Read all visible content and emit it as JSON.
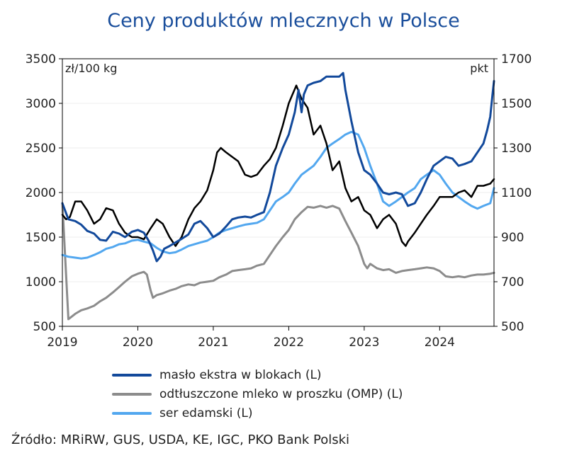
{
  "title": "Ceny produktów mlecznych w Polsce",
  "source": "Źródło: MRiRW, GUS, USDA, KE, IGC, PKO Bank Polski",
  "chart_data": {
    "type": "line",
    "title": "Ceny produktów mlecznych w Polsce",
    "left_axis": {
      "unit": "zł/100 kg",
      "min": 500,
      "max": 3500,
      "ticks": [
        "500",
        "1000",
        "1500",
        "2000",
        "2500",
        "3000",
        "3500"
      ]
    },
    "right_axis": {
      "unit": "pkt",
      "min": 500,
      "max": 1700,
      "ticks": [
        "500",
        "700",
        "900",
        "1100",
        "1300",
        "1500",
        "1700"
      ]
    },
    "x_axis": {
      "min": 2019,
      "max": 2024.72,
      "ticks": [
        "2019",
        "2020",
        "2021",
        "2022",
        "2023",
        "2024"
      ]
    },
    "legend_placement": "bottom",
    "grid": true,
    "series": [
      {
        "name": "masło ekstra w blokach (L)",
        "axis": "left",
        "color": "#12499b",
        "width": 3,
        "x": [
          2019.0,
          2019.08,
          2019.17,
          2019.25,
          2019.33,
          2019.42,
          2019.5,
          2019.58,
          2019.67,
          2019.75,
          2019.83,
          2019.92,
          2020.0,
          2020.08,
          2020.15,
          2020.2,
          2020.25,
          2020.3,
          2020.35,
          2020.42,
          2020.5,
          2020.58,
          2020.67,
          2020.75,
          2020.83,
          2020.92,
          2021.0,
          2021.08,
          2021.17,
          2021.25,
          2021.33,
          2021.42,
          2021.5,
          2021.58,
          2021.67,
          2021.75,
          2021.83,
          2021.92,
          2022.0,
          2022.08,
          2022.13,
          2022.17,
          2022.2,
          2022.25,
          2022.33,
          2022.42,
          2022.5,
          2022.58,
          2022.67,
          2022.72,
          2022.75,
          2022.83,
          2022.92,
          2023.0,
          2023.08,
          2023.17,
          2023.25,
          2023.33,
          2023.42,
          2023.5,
          2023.58,
          2023.67,
          2023.75,
          2023.83,
          2023.92,
          2024.0,
          2024.08,
          2024.17,
          2024.25,
          2024.33,
          2024.42,
          2024.5,
          2024.58,
          2024.63,
          2024.67,
          2024.7,
          2024.72
        ],
        "y": [
          1880,
          1700,
          1680,
          1640,
          1570,
          1540,
          1470,
          1460,
          1560,
          1540,
          1500,
          1560,
          1580,
          1550,
          1450,
          1350,
          1230,
          1280,
          1370,
          1400,
          1440,
          1480,
          1530,
          1650,
          1680,
          1600,
          1500,
          1540,
          1620,
          1700,
          1720,
          1730,
          1720,
          1750,
          1780,
          2000,
          2300,
          2500,
          2650,
          2900,
          3150,
          2900,
          3100,
          3200,
          3230,
          3250,
          3300,
          3300,
          3300,
          3340,
          3150,
          2800,
          2450,
          2250,
          2200,
          2100,
          2000,
          1980,
          2000,
          1980,
          1850,
          1880,
          2000,
          2150,
          2300,
          2350,
          2400,
          2380,
          2300,
          2320,
          2350,
          2450,
          2550,
          2700,
          2850,
          3100,
          3250
        ]
      },
      {
        "name": "odtłuszczone mleko w proszku (OMP) (L)",
        "axis": "left",
        "color": "#8c8c8c",
        "width": 3,
        "x": [
          2019.0,
          2019.08,
          2019.17,
          2019.25,
          2019.33,
          2019.42,
          2019.5,
          2019.58,
          2019.67,
          2019.75,
          2019.83,
          2019.92,
          2020.0,
          2020.08,
          2020.12,
          2020.17,
          2020.2,
          2020.25,
          2020.33,
          2020.42,
          2020.5,
          2020.58,
          2020.67,
          2020.75,
          2020.83,
          2020.92,
          2021.0,
          2021.08,
          2021.17,
          2021.25,
          2021.33,
          2021.42,
          2021.5,
          2021.58,
          2021.67,
          2021.75,
          2021.83,
          2021.92,
          2022.0,
          2022.08,
          2022.17,
          2022.25,
          2022.33,
          2022.42,
          2022.5,
          2022.58,
          2022.67,
          2022.75,
          2022.83,
          2022.92,
          2023.0,
          2023.04,
          2023.08,
          2023.17,
          2023.25,
          2023.33,
          2023.42,
          2023.5,
          2023.58,
          2023.67,
          2023.75,
          2023.83,
          2023.92,
          2024.0,
          2024.08,
          2024.17,
          2024.25,
          2024.33,
          2024.42,
          2024.5,
          2024.58,
          2024.67,
          2024.72
        ],
        "y": [
          1880,
          580,
          640,
          680,
          700,
          730,
          780,
          820,
          880,
          940,
          1000,
          1060,
          1090,
          1110,
          1080,
          900,
          820,
          850,
          870,
          900,
          920,
          950,
          970,
          960,
          990,
          1000,
          1010,
          1050,
          1080,
          1120,
          1130,
          1140,
          1150,
          1180,
          1200,
          1300,
          1400,
          1500,
          1580,
          1700,
          1780,
          1840,
          1830,
          1850,
          1830,
          1850,
          1820,
          1680,
          1550,
          1400,
          1200,
          1150,
          1200,
          1150,
          1130,
          1140,
          1100,
          1120,
          1130,
          1140,
          1150,
          1160,
          1150,
          1120,
          1060,
          1050,
          1060,
          1050,
          1070,
          1080,
          1080,
          1090,
          1100
        ]
      },
      {
        "name": "ser edamski (L)",
        "axis": "left",
        "color": "#52a7ef",
        "width": 3,
        "x": [
          2019.0,
          2019.08,
          2019.17,
          2019.25,
          2019.33,
          2019.42,
          2019.5,
          2019.58,
          2019.67,
          2019.75,
          2019.83,
          2019.92,
          2020.0,
          2020.08,
          2020.17,
          2020.25,
          2020.33,
          2020.42,
          2020.5,
          2020.58,
          2020.67,
          2020.75,
          2020.83,
          2020.92,
          2021.0,
          2021.08,
          2021.17,
          2021.25,
          2021.33,
          2021.42,
          2021.5,
          2021.58,
          2021.67,
          2021.75,
          2021.83,
          2021.92,
          2022.0,
          2022.08,
          2022.17,
          2022.25,
          2022.33,
          2022.42,
          2022.5,
          2022.58,
          2022.67,
          2022.75,
          2022.83,
          2022.92,
          2023.0,
          2023.08,
          2023.17,
          2023.25,
          2023.33,
          2023.42,
          2023.5,
          2023.58,
          2023.67,
          2023.75,
          2023.83,
          2023.92,
          2024.0,
          2024.08,
          2024.17,
          2024.25,
          2024.33,
          2024.42,
          2024.5,
          2024.58,
          2024.67,
          2024.72
        ],
        "y": [
          1300,
          1280,
          1270,
          1260,
          1270,
          1300,
          1330,
          1370,
          1390,
          1420,
          1430,
          1460,
          1470,
          1450,
          1430,
          1380,
          1340,
          1320,
          1330,
          1360,
          1400,
          1420,
          1440,
          1460,
          1500,
          1550,
          1580,
          1600,
          1620,
          1640,
          1650,
          1660,
          1700,
          1800,
          1900,
          1950,
          2000,
          2100,
          2200,
          2250,
          2300,
          2400,
          2500,
          2550,
          2600,
          2650,
          2680,
          2650,
          2500,
          2300,
          2100,
          1900,
          1850,
          1900,
          1950,
          2000,
          2050,
          2150,
          2200,
          2250,
          2200,
          2100,
          2000,
          1950,
          1900,
          1850,
          1820,
          1850,
          1880,
          2050
        ]
      },
      {
        "name": "",
        "axis": "right",
        "color": "#000000",
        "width": 2.5,
        "x": [
          2019.0,
          2019.05,
          2019.1,
          2019.17,
          2019.25,
          2019.33,
          2019.42,
          2019.5,
          2019.58,
          2019.67,
          2019.75,
          2019.83,
          2019.92,
          2020.0,
          2020.08,
          2020.17,
          2020.25,
          2020.33,
          2020.42,
          2020.5,
          2020.58,
          2020.67,
          2020.75,
          2020.83,
          2020.92,
          2021.0,
          2021.05,
          2021.1,
          2021.17,
          2021.25,
          2021.33,
          2021.42,
          2021.5,
          2021.58,
          2021.67,
          2021.75,
          2021.83,
          2021.92,
          2022.0,
          2022.05,
          2022.1,
          2022.17,
          2022.25,
          2022.33,
          2022.42,
          2022.5,
          2022.58,
          2022.67,
          2022.75,
          2022.83,
          2022.92,
          2023.0,
          2023.08,
          2023.17,
          2023.25,
          2023.33,
          2023.42,
          2023.5,
          2023.55,
          2023.58,
          2023.67,
          2023.75,
          2023.83,
          2023.92,
          2024.0,
          2024.08,
          2024.17,
          2024.25,
          2024.33,
          2024.42,
          2024.5,
          2024.58,
          2024.67,
          2024.72
        ],
        "y": [
          1000,
          980,
          990,
          1060,
          1060,
          1020,
          960,
          980,
          1030,
          1020,
          960,
          920,
          900,
          900,
          890,
          940,
          980,
          960,
          900,
          860,
          900,
          980,
          1030,
          1060,
          1110,
          1200,
          1280,
          1300,
          1280,
          1260,
          1240,
          1180,
          1170,
          1180,
          1220,
          1250,
          1300,
          1400,
          1500,
          1540,
          1580,
          1520,
          1480,
          1360,
          1400,
          1320,
          1200,
          1240,
          1120,
          1060,
          1080,
          1020,
          1000,
          940,
          980,
          1000,
          960,
          880,
          860,
          880,
          920,
          960,
          1000,
          1040,
          1080,
          1080,
          1080,
          1100,
          1110,
          1080,
          1130,
          1130,
          1140,
          1160
        ]
      }
    ],
    "legend": [
      {
        "label": "masło ekstra w blokach (L)",
        "color": "#12499b"
      },
      {
        "label": "odtłuszczone mleko w proszku (OMP) (L)",
        "color": "#8c8c8c"
      },
      {
        "label": "ser edamski (L)",
        "color": "#52a7ef"
      }
    ]
  }
}
